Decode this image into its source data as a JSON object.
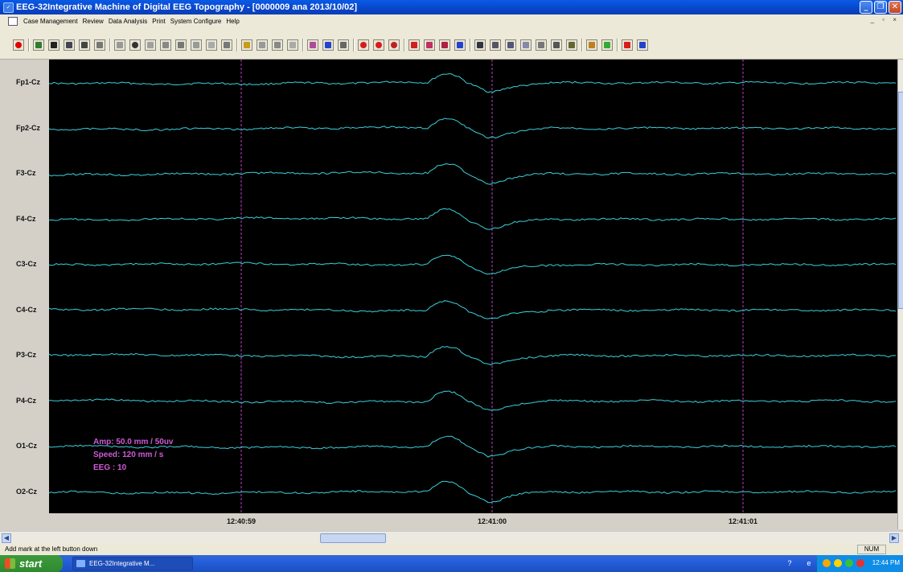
{
  "window": {
    "title": "EEG-32Integrative Machine of Digital EEG Topography - [0000009 ana 2013/10/02]",
    "icon": "app-icon",
    "controls": [
      "minimize-icon",
      "restore-icon",
      "close-icon"
    ]
  },
  "menu": {
    "items": [
      "Case Management",
      "Review",
      "Data Analysis",
      "Print",
      "System Configure",
      "Help"
    ]
  },
  "toolbar": {
    "icons": [
      "record-icon",
      "montage-icon",
      "play-icon",
      "monitor-icon",
      "stop-icon",
      "pause-icon",
      "wave-icon",
      "dot-icon",
      "chart-icon",
      "grid-icon",
      "map-icon",
      "head-icon",
      "spectrum-icon",
      "bars-icon",
      "select-icon",
      "compare-icon",
      "table-icon",
      "book-icon",
      "marker-icon",
      "arrows-icon",
      "close-x-icon",
      "red-circle-icon",
      "half-circle-icon",
      "pie-icon",
      "font-icon",
      "multi-wave-icon",
      "zigzag-icon",
      "cross-wave-icon",
      "save-icon",
      "print-icon",
      "zoom-icon",
      "text-icon",
      "ruler-icon",
      "bar-icon",
      "help-icon",
      "tools-icon",
      "list-icon",
      "arrow-down-icon",
      "filter-icon"
    ],
    "colors": {
      "record": "#e00000",
      "accent_red": "#d81b1b",
      "accent_blue": "#2244cc",
      "accent_yellow": "#f0c000"
    }
  },
  "channels": [
    "Fp1-Cz",
    "Fp2-Cz",
    "F3-Cz",
    "F4-Cz",
    "C3-Cz",
    "C4-Cz",
    "P3-Cz",
    "P4-Cz",
    "O1-Cz",
    "O2-Cz"
  ],
  "trace_color": "#3ad1dc",
  "marker_color": "#c040c0",
  "time_labels": [
    "12:40:59",
    "12:41:00",
    "12:41:01"
  ],
  "info": {
    "amp": "Amp: 50.0 mm / 50uv",
    "speed": "Speed: 120 mm / s",
    "eeg": "EEG : 10"
  },
  "status": {
    "message": "Add mark at the left button down",
    "num": "NUM"
  },
  "taskbar": {
    "start": "start",
    "task_item": "EEG-32Integrative M...",
    "clock": "12:44 PM"
  }
}
